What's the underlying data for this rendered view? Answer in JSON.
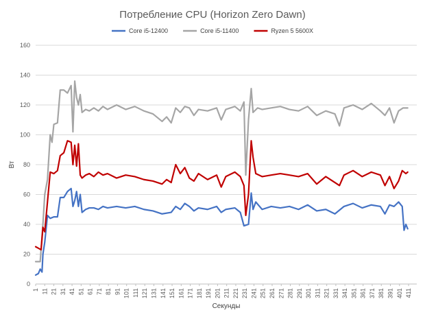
{
  "chart_data": {
    "type": "line",
    "title": "Потребление CPU (Horizon Zero Dawn)",
    "xlabel": "Секунды",
    "ylabel": "Вт",
    "ylim": [
      0,
      160
    ],
    "yticks": [
      0,
      20,
      40,
      60,
      80,
      100,
      120,
      140,
      160
    ],
    "xlim": [
      1,
      420
    ],
    "xticks": [
      1,
      11,
      21,
      31,
      41,
      51,
      61,
      71,
      81,
      91,
      101,
      111,
      121,
      131,
      141,
      151,
      161,
      171,
      181,
      191,
      201,
      211,
      221,
      231,
      241,
      251,
      261,
      271,
      281,
      291,
      301,
      311,
      321,
      331,
      341,
      351,
      361,
      371,
      381,
      391,
      401,
      411
    ],
    "grid": true,
    "legend_position": "top",
    "series": [
      {
        "name": "Core i5-12400",
        "color": "#4472c4",
        "points": [
          [
            1,
            6
          ],
          [
            4,
            7
          ],
          [
            6,
            10
          ],
          [
            8,
            8
          ],
          [
            9,
            20
          ],
          [
            11,
            28
          ],
          [
            14,
            46
          ],
          [
            17,
            44
          ],
          [
            21,
            45
          ],
          [
            25,
            45
          ],
          [
            28,
            58
          ],
          [
            32,
            58
          ],
          [
            36,
            62
          ],
          [
            40,
            64
          ],
          [
            42,
            52
          ],
          [
            44,
            56
          ],
          [
            46,
            62
          ],
          [
            48,
            52
          ],
          [
            50,
            60
          ],
          [
            52,
            48
          ],
          [
            56,
            50
          ],
          [
            60,
            51
          ],
          [
            65,
            51
          ],
          [
            70,
            50
          ],
          [
            75,
            52
          ],
          [
            80,
            51
          ],
          [
            90,
            52
          ],
          [
            100,
            51
          ],
          [
            110,
            52
          ],
          [
            120,
            50
          ],
          [
            130,
            49
          ],
          [
            140,
            47
          ],
          [
            150,
            48
          ],
          [
            155,
            52
          ],
          [
            160,
            50
          ],
          [
            165,
            54
          ],
          [
            170,
            52
          ],
          [
            175,
            49
          ],
          [
            180,
            51
          ],
          [
            190,
            50
          ],
          [
            200,
            52
          ],
          [
            205,
            48
          ],
          [
            210,
            50
          ],
          [
            220,
            51
          ],
          [
            226,
            48
          ],
          [
            230,
            39
          ],
          [
            235,
            40
          ],
          [
            238,
            61
          ],
          [
            240,
            50
          ],
          [
            243,
            55
          ],
          [
            250,
            50
          ],
          [
            260,
            52
          ],
          [
            270,
            51
          ],
          [
            280,
            52
          ],
          [
            290,
            50
          ],
          [
            300,
            53
          ],
          [
            310,
            49
          ],
          [
            320,
            50
          ],
          [
            330,
            47
          ],
          [
            340,
            52
          ],
          [
            350,
            54
          ],
          [
            360,
            51
          ],
          [
            370,
            53
          ],
          [
            380,
            52
          ],
          [
            385,
            47
          ],
          [
            390,
            53
          ],
          [
            395,
            52
          ],
          [
            400,
            55
          ],
          [
            404,
            52
          ],
          [
            406,
            36
          ],
          [
            408,
            40
          ],
          [
            410,
            37
          ]
        ]
      },
      {
        "name": "Core i5-11400",
        "color": "#a5a5a5",
        "points": [
          [
            1,
            15
          ],
          [
            6,
            15
          ],
          [
            9,
            40
          ],
          [
            11,
            60
          ],
          [
            14,
            70
          ],
          [
            17,
            100
          ],
          [
            19,
            95
          ],
          [
            21,
            107
          ],
          [
            25,
            108
          ],
          [
            28,
            130
          ],
          [
            32,
            130
          ],
          [
            36,
            128
          ],
          [
            40,
            133
          ],
          [
            42,
            102
          ],
          [
            44,
            136
          ],
          [
            46,
            125
          ],
          [
            48,
            120
          ],
          [
            50,
            127
          ],
          [
            52,
            115
          ],
          [
            56,
            117
          ],
          [
            60,
            116
          ],
          [
            65,
            118
          ],
          [
            70,
            116
          ],
          [
            75,
            119
          ],
          [
            80,
            117
          ],
          [
            90,
            120
          ],
          [
            100,
            117
          ],
          [
            110,
            119
          ],
          [
            120,
            116
          ],
          [
            130,
            114
          ],
          [
            140,
            109
          ],
          [
            145,
            112
          ],
          [
            150,
            108
          ],
          [
            155,
            118
          ],
          [
            160,
            115
          ],
          [
            165,
            119
          ],
          [
            170,
            118
          ],
          [
            175,
            113
          ],
          [
            180,
            117
          ],
          [
            190,
            116
          ],
          [
            200,
            118
          ],
          [
            205,
            110
          ],
          [
            210,
            117
          ],
          [
            220,
            119
          ],
          [
            226,
            116
          ],
          [
            230,
            122
          ],
          [
            232,
            73
          ],
          [
            235,
            110
          ],
          [
            238,
            131
          ],
          [
            240,
            115
          ],
          [
            245,
            118
          ],
          [
            250,
            117
          ],
          [
            260,
            118
          ],
          [
            270,
            119
          ],
          [
            280,
            117
          ],
          [
            290,
            116
          ],
          [
            300,
            119
          ],
          [
            310,
            113
          ],
          [
            320,
            116
          ],
          [
            330,
            114
          ],
          [
            335,
            106
          ],
          [
            340,
            118
          ],
          [
            350,
            120
          ],
          [
            360,
            117
          ],
          [
            370,
            121
          ],
          [
            380,
            116
          ],
          [
            385,
            113
          ],
          [
            390,
            118
          ],
          [
            395,
            108
          ],
          [
            400,
            116
          ],
          [
            405,
            118
          ],
          [
            410,
            118
          ]
        ]
      },
      {
        "name": "Ryzen 5 5600X",
        "color": "#c00000",
        "points": [
          [
            1,
            25
          ],
          [
            4,
            24
          ],
          [
            7,
            23
          ],
          [
            9,
            38
          ],
          [
            11,
            35
          ],
          [
            14,
            55
          ],
          [
            17,
            75
          ],
          [
            21,
            74
          ],
          [
            25,
            76
          ],
          [
            28,
            86
          ],
          [
            32,
            88
          ],
          [
            36,
            96
          ],
          [
            40,
            95
          ],
          [
            42,
            80
          ],
          [
            44,
            93
          ],
          [
            46,
            79
          ],
          [
            48,
            94
          ],
          [
            50,
            73
          ],
          [
            52,
            71
          ],
          [
            56,
            73
          ],
          [
            60,
            74
          ],
          [
            65,
            72
          ],
          [
            70,
            75
          ],
          [
            75,
            73
          ],
          [
            80,
            74
          ],
          [
            90,
            71
          ],
          [
            100,
            73
          ],
          [
            110,
            72
          ],
          [
            120,
            70
          ],
          [
            130,
            69
          ],
          [
            140,
            67
          ],
          [
            145,
            70
          ],
          [
            150,
            68
          ],
          [
            155,
            80
          ],
          [
            160,
            74
          ],
          [
            165,
            78
          ],
          [
            170,
            71
          ],
          [
            175,
            69
          ],
          [
            180,
            74
          ],
          [
            190,
            70
          ],
          [
            200,
            73
          ],
          [
            205,
            65
          ],
          [
            210,
            72
          ],
          [
            220,
            75
          ],
          [
            226,
            72
          ],
          [
            230,
            66
          ],
          [
            232,
            46
          ],
          [
            235,
            60
          ],
          [
            238,
            96
          ],
          [
            240,
            85
          ],
          [
            243,
            74
          ],
          [
            250,
            72
          ],
          [
            260,
            73
          ],
          [
            270,
            74
          ],
          [
            280,
            73
          ],
          [
            290,
            72
          ],
          [
            300,
            74
          ],
          [
            310,
            67
          ],
          [
            320,
            72
          ],
          [
            330,
            68
          ],
          [
            335,
            66
          ],
          [
            340,
            73
          ],
          [
            350,
            76
          ],
          [
            360,
            72
          ],
          [
            370,
            75
          ],
          [
            380,
            73
          ],
          [
            385,
            66
          ],
          [
            390,
            72
          ],
          [
            395,
            64
          ],
          [
            400,
            69
          ],
          [
            404,
            76
          ],
          [
            408,
            74
          ],
          [
            410,
            75
          ]
        ]
      }
    ]
  }
}
